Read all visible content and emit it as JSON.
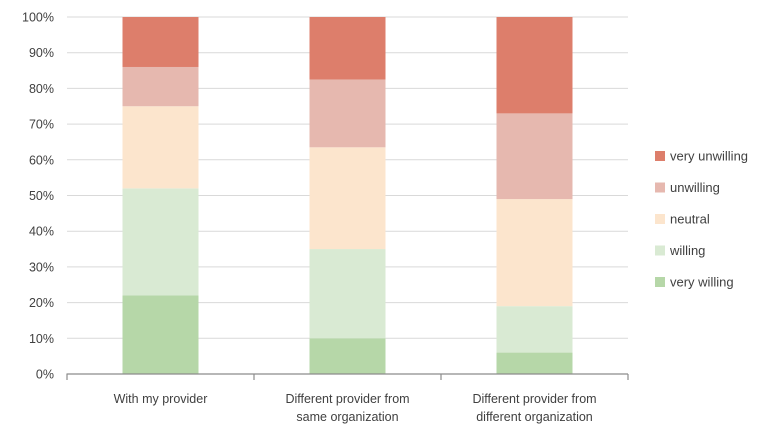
{
  "chart_data": {
    "type": "bar",
    "stacked": true,
    "percent_stacked": true,
    "categories": [
      [
        "With my provider"
      ],
      [
        "Different provider from",
        "same organization"
      ],
      [
        "Different provider from",
        "different organization"
      ]
    ],
    "series": [
      {
        "name": "very willing",
        "color": "#b6d7a8",
        "values": [
          22,
          10,
          6
        ]
      },
      {
        "name": "willing",
        "color": "#d9ead3",
        "values": [
          30,
          25,
          13
        ]
      },
      {
        "name": "neutral",
        "color": "#fce5cd",
        "values": [
          23,
          28.5,
          30
        ]
      },
      {
        "name": "unwilling",
        "color": "#e6b8af",
        "values": [
          11,
          19,
          24
        ]
      },
      {
        "name": "very unwilling",
        "color": "#dd7e6b",
        "values": [
          14,
          17.5,
          27
        ]
      }
    ],
    "legend_order": [
      "very unwilling",
      "unwilling",
      "neutral",
      "willing",
      "very willing"
    ],
    "y_ticks": [
      "0%",
      "10%",
      "20%",
      "30%",
      "40%",
      "50%",
      "60%",
      "70%",
      "80%",
      "90%",
      "100%"
    ],
    "ylim": [
      0,
      100
    ],
    "grid": true,
    "legend_position": "right"
  }
}
